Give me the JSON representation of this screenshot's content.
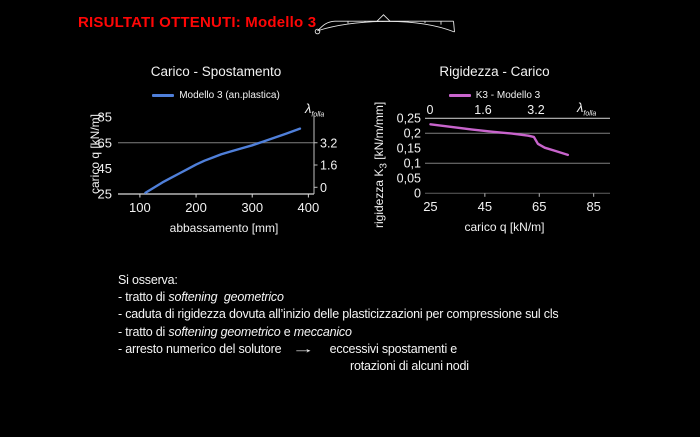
{
  "slide": {
    "title": "RISULTATI OTTENUTI: Modello 3"
  },
  "colors": {
    "title_red": "#ff0606",
    "text": "#f2f2f2",
    "series_blue": "#4f7fd9",
    "series_pink": "#c864cc",
    "gridline": "#7f7f7f",
    "axis": "#d9d9d9"
  },
  "icons": {
    "header_sketch": "deformed-arch-structure"
  },
  "chart_data": [
    {
      "type": "line",
      "title": "Carico - Spostamento",
      "legend": [
        {
          "label": "Modello 3 (an.plastica)",
          "color": "#4f7fd9"
        }
      ],
      "xlabel": "abbassamento [mm]",
      "ylabel": "carico q [kN/m]",
      "xticks": [
        100,
        200,
        300,
        400
      ],
      "yticks": [
        25,
        45,
        65,
        85
      ],
      "xlim": [
        61,
        410
      ],
      "ylim": [
        25,
        89
      ],
      "gridlines_y": [
        65
      ],
      "secondary_axis": {
        "symbol": "λ",
        "subscript": "folla",
        "side": "right",
        "tick_labels": [
          "0",
          "1.6",
          "3.2"
        ]
      },
      "series": [
        {
          "name": "Modello 3 (an.plastica)",
          "color": "#4f7fd9",
          "points": [
            [
              110,
              26
            ],
            [
              125,
              30
            ],
            [
              140,
              34
            ],
            [
              155,
              37.5
            ],
            [
              170,
              41
            ],
            [
              185,
              44.5
            ],
            [
              200,
              48
            ],
            [
              215,
              51
            ],
            [
              230,
              53.5
            ],
            [
              245,
              56
            ],
            [
              260,
              58
            ],
            [
              280,
              60.5
            ],
            [
              300,
              63
            ],
            [
              320,
              66
            ],
            [
              340,
              69
            ],
            [
              360,
              72
            ],
            [
              385,
              76
            ]
          ]
        }
      ]
    },
    {
      "type": "line",
      "title": "Rigidezza - Carico",
      "legend": [
        {
          "label": "K3 - Modello 3",
          "color": "#c864cc"
        }
      ],
      "xlabel": "carico q [kN/m]",
      "ylabel_parts": {
        "pre": "rigidezza K",
        "sub": "3",
        "post": " [kN/m/mm]"
      },
      "xticks": [
        25,
        45,
        65,
        85
      ],
      "ytick_values": [
        0,
        0.05,
        0.1,
        0.15,
        0.2,
        0.25
      ],
      "ytick_labels": [
        "0",
        "0,05",
        "0,1",
        "0,15",
        "0,2",
        "0,25"
      ],
      "xlim": [
        23,
        91
      ],
      "ylim": [
        0,
        0.25
      ],
      "gridlines_y": [
        0.1,
        0.2
      ],
      "top_axis": {
        "symbol": "λ",
        "subscript": "folla",
        "tick_labels": [
          "0",
          "1.6",
          "3.2"
        ]
      },
      "bottom_tick_values": [
        45,
        65,
        85
      ],
      "series": [
        {
          "name": "K3 - Modello 3",
          "color": "#c864cc",
          "points": [
            [
              25,
              0.23
            ],
            [
              32,
              0.222
            ],
            [
              40,
              0.213
            ],
            [
              48,
              0.205
            ],
            [
              55,
              0.199
            ],
            [
              61,
              0.192
            ],
            [
              63,
              0.188
            ],
            [
              64.5,
              0.165
            ],
            [
              67,
              0.152
            ],
            [
              71,
              0.141
            ],
            [
              75.5,
              0.128
            ]
          ]
        }
      ]
    }
  ],
  "notes": {
    "intro": "Si osserva:",
    "lines": [
      {
        "segments": [
          {
            "text": "- tratto di ",
            "style": "normal"
          },
          {
            "text": "softening  geometrico",
            "style": "italic"
          }
        ]
      },
      {
        "segments": [
          {
            "text": "- caduta di rigidezza dovuta all’inizio delle plasticizzazioni per compressione sul cls",
            "style": "normal"
          }
        ]
      },
      {
        "segments": [
          {
            "text": "- tratto di ",
            "style": "normal"
          },
          {
            "text": "softening geometrico",
            "style": "italic"
          },
          {
            "text": " e ",
            "style": "normal"
          },
          {
            "text": "meccanico",
            "style": "italic"
          }
        ]
      },
      {
        "segments": [
          {
            "text": "- arresto numerico del solutore",
            "style": "normal"
          },
          {
            "text": "→",
            "style": "arrow"
          },
          {
            "text": "eccessivi spostamenti e",
            "style": "normal"
          }
        ]
      },
      {
        "indented": true,
        "segments": [
          {
            "text": "rotazioni di alcuni nodi",
            "style": "normal"
          }
        ]
      }
    ]
  }
}
